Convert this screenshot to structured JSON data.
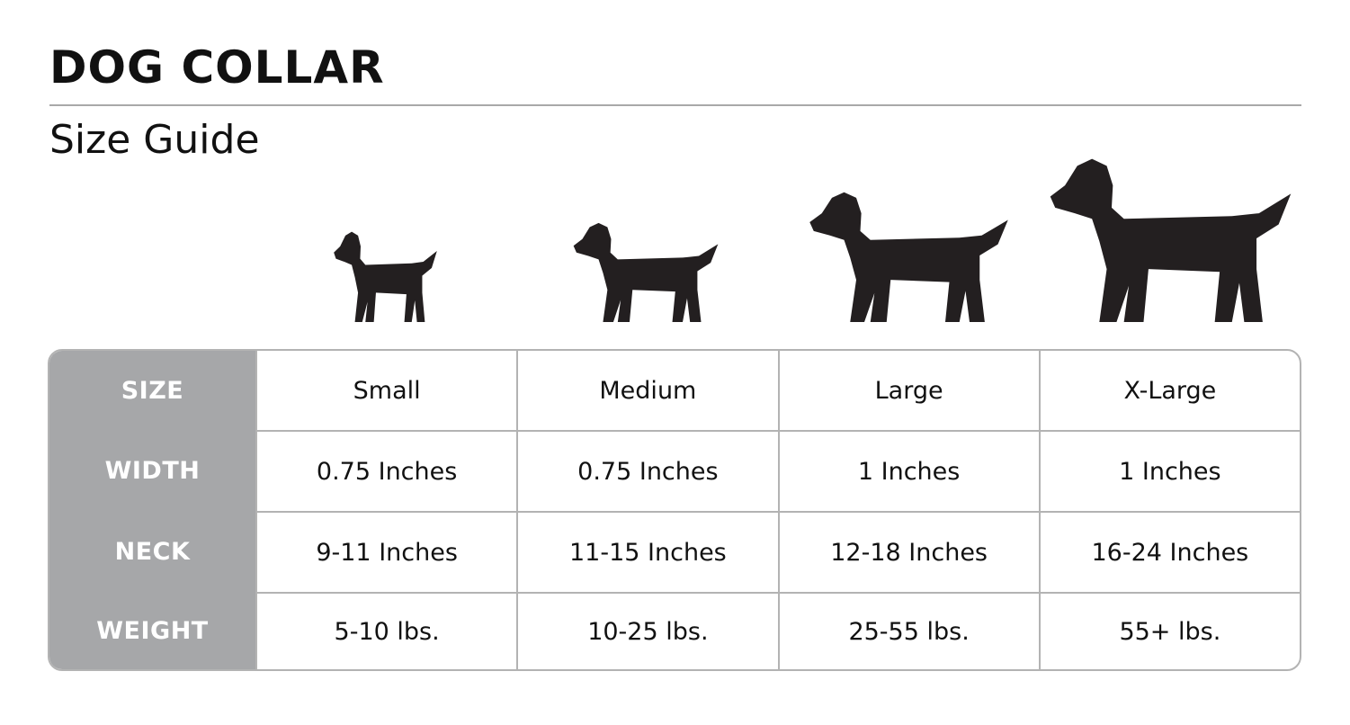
{
  "header": {
    "title": "DOG COLLAR",
    "subtitle": "Size Guide"
  },
  "colors": {
    "label_bg": "#a6a7a9",
    "border": "#b3b3b3",
    "silhouette": "#231f20"
  },
  "icons": [
    "small-dog-silhouette-icon",
    "medium-dog-silhouette-icon",
    "large-dog-silhouette-icon",
    "xlarge-dog-silhouette-icon"
  ],
  "table": {
    "rows": [
      {
        "label": "SIZE",
        "values": [
          "Small",
          "Medium",
          "Large",
          "X-Large"
        ]
      },
      {
        "label": "WIDTH",
        "values": [
          "0.75 Inches",
          "0.75 Inches",
          "1 Inches",
          "1 Inches"
        ]
      },
      {
        "label": "NECK",
        "values": [
          "9-11 Inches",
          "11-15 Inches",
          "12-18 Inches",
          "16-24 Inches"
        ]
      },
      {
        "label": "WEIGHT",
        "values": [
          "5-10 lbs.",
          "10-25 lbs.",
          "25-55 lbs.",
          "55+ lbs."
        ]
      }
    ]
  }
}
